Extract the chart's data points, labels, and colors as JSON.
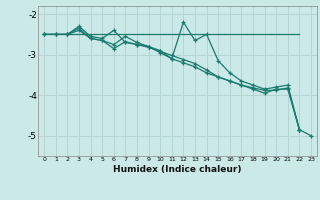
{
  "xlabel": "Humidex (Indice chaleur)",
  "xlim": [
    -0.5,
    23.5
  ],
  "ylim": [
    -5.5,
    -1.8
  ],
  "yticks": [
    -5,
    -4,
    -3,
    -2
  ],
  "xtick_labels": [
    "0",
    "1",
    "2",
    "3",
    "4",
    "5",
    "6",
    "7",
    "8",
    "9",
    "10",
    "11",
    "12",
    "13",
    "14",
    "15",
    "16",
    "17",
    "18",
    "19",
    "20",
    "21",
    "22",
    "23"
  ],
  "bg_color": "#cce9e9",
  "grid_color": "#b0d0d0",
  "line_color": "#1a7a6e",
  "series": [
    {
      "x": [
        0,
        1,
        2,
        3,
        4,
        5,
        6,
        7,
        8,
        9,
        10,
        11,
        12,
        13,
        14,
        15,
        16,
        17,
        18,
        19,
        20,
        21,
        22
      ],
      "y": [
        -2.5,
        -2.5,
        -2.5,
        -2.3,
        -2.55,
        -2.6,
        -2.4,
        -2.7,
        -2.75,
        -2.8,
        -2.9,
        -3.1,
        -2.2,
        -2.65,
        -2.5,
        -3.15,
        -3.45,
        -3.65,
        -3.75,
        -3.85,
        -3.8,
        -3.75,
        -4.85
      ],
      "marker": true
    },
    {
      "x": [
        0,
        1,
        2,
        3,
        4,
        5,
        6,
        7,
        8,
        9,
        10,
        11,
        12,
        13,
        14,
        15,
        16,
        17,
        18,
        19,
        20,
        21,
        22
      ],
      "y": [
        -2.5,
        -2.5,
        -2.5,
        -2.35,
        -2.6,
        -2.65,
        -2.75,
        -2.55,
        -2.7,
        -2.8,
        -2.95,
        -3.1,
        -3.2,
        -3.3,
        -3.45,
        -3.55,
        -3.65,
        -3.75,
        -3.82,
        -3.88,
        -3.88,
        -3.82,
        -4.85
      ],
      "marker": true
    },
    {
      "x": [
        0,
        1,
        2,
        3,
        4,
        5,
        6,
        7,
        8,
        9,
        10,
        11,
        12,
        13,
        14,
        15,
        16,
        17,
        18,
        19,
        20,
        21,
        22
      ],
      "y": [
        -2.5,
        -2.5,
        -2.5,
        -2.5,
        -2.5,
        -2.5,
        -2.5,
        -2.5,
        -2.5,
        -2.5,
        -2.5,
        -2.5,
        -2.5,
        -2.5,
        -2.5,
        -2.5,
        -2.5,
        -2.5,
        -2.5,
        -2.5,
        -2.5,
        -2.5,
        -2.5
      ],
      "marker": false
    },
    {
      "x": [
        0,
        1,
        2,
        3,
        4,
        5,
        6,
        7,
        8,
        9,
        10,
        11,
        12,
        13,
        14,
        15,
        16,
        17,
        18,
        19,
        20,
        21,
        22,
        23
      ],
      "y": [
        -2.5,
        -2.5,
        -2.5,
        -2.4,
        -2.6,
        -2.65,
        -2.85,
        -2.68,
        -2.75,
        -2.82,
        -2.92,
        -3.02,
        -3.12,
        -3.22,
        -3.38,
        -3.55,
        -3.65,
        -3.75,
        -3.85,
        -3.95,
        -3.85,
        -3.85,
        -4.85,
        -5.0
      ],
      "marker": true
    }
  ]
}
